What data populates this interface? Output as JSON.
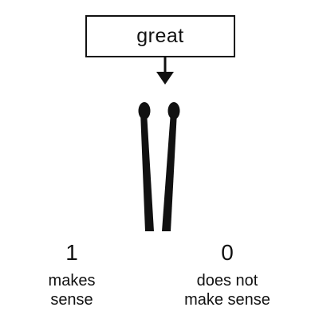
{
  "word": "great",
  "left_option": {
    "value": "1",
    "label_line1": "makes",
    "label_line2": "sense"
  },
  "right_option": {
    "value": "0",
    "label_line1": "does not",
    "label_line2": "make sense"
  },
  "colors": {
    "ink": "#111111",
    "background": "#ffffff"
  }
}
